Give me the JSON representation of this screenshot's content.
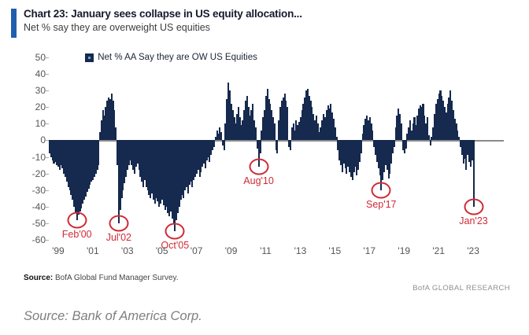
{
  "header": {
    "title": "Chart 23: January sees collapse in US equity allocation...",
    "subtitle": "Net % say they are overweight US equities",
    "accent_color": "#1f5fad"
  },
  "legend": {
    "label": "Net % AA Say they are OW US Equities"
  },
  "chart_data": {
    "type": "bar",
    "title": "Chart 23: January sees collapse in US equity allocation...",
    "subtitle": "Net % say they are overweight US equities",
    "series_name": "Net % AA Say they are OW US Equities",
    "frequency": "monthly",
    "start_month": "1998-07",
    "end_month": "2023-01",
    "ylim": [
      -60,
      50
    ],
    "yticks": [
      50,
      40,
      30,
      20,
      10,
      0,
      -10,
      -20,
      -30,
      -40,
      -50,
      -60
    ],
    "grid": false,
    "legend_position": "top-inside",
    "bar_color": "#16294e",
    "annotation_color": "#cf2a35",
    "xticks": [
      {
        "label": "'99",
        "index": 6
      },
      {
        "label": "'01",
        "index": 30
      },
      {
        "label": "'03",
        "index": 54
      },
      {
        "label": "'05",
        "index": 78
      },
      {
        "label": "'07",
        "index": 102
      },
      {
        "label": "'09",
        "index": 126
      },
      {
        "label": "'11",
        "index": 150
      },
      {
        "label": "'13",
        "index": 174
      },
      {
        "label": "'15",
        "index": 198
      },
      {
        "label": "'17",
        "index": 222
      },
      {
        "label": "'19",
        "index": 246
      },
      {
        "label": "'21",
        "index": 270
      },
      {
        "label": "'23",
        "index": 294
      }
    ],
    "annotations": [
      {
        "label": "Feb'00",
        "index": 19,
        "value": -48
      },
      {
        "label": "Jul'02",
        "index": 48,
        "value": -50
      },
      {
        "label": "Oct'05",
        "index": 87,
        "value": -55
      },
      {
        "label": "Aug'10",
        "index": 145,
        "value": -16
      },
      {
        "label": "Sep'17",
        "index": 230,
        "value": -30
      },
      {
        "label": "Jan'23",
        "index": 294,
        "value": -40
      }
    ],
    "values": [
      -8,
      -10,
      -12,
      -14,
      -13,
      -15,
      -16,
      -18,
      -15,
      -17,
      -20,
      -22,
      -25,
      -28,
      -30,
      -33,
      -36,
      -40,
      -44,
      -48,
      -45,
      -43,
      -41,
      -38,
      -36,
      -34,
      -31,
      -29,
      -27,
      -25,
      -24,
      -22,
      -20,
      -18,
      -15,
      5,
      12,
      18,
      15,
      20,
      24,
      26,
      25,
      28,
      24,
      18,
      8,
      -15,
      -50,
      -42,
      -35,
      -30,
      -26,
      -22,
      -18,
      -15,
      -12,
      -15,
      -18,
      -20,
      -16,
      -14,
      -18,
      -22,
      -25,
      -28,
      -24,
      -28,
      -30,
      -33,
      -35,
      -32,
      -36,
      -38,
      -35,
      -37,
      -40,
      -38,
      -36,
      -39,
      -42,
      -40,
      -44,
      -46,
      -43,
      -47,
      -50,
      -55,
      -48,
      -44,
      -40,
      -36,
      -33,
      -35,
      -30,
      -28,
      -32,
      -27,
      -25,
      -28,
      -24,
      -22,
      -20,
      -18,
      -22,
      -19,
      -16,
      -14,
      -17,
      -12,
      -10,
      -13,
      -9,
      -6,
      -4,
      2,
      6,
      4,
      8,
      5,
      -3,
      -6,
      10,
      25,
      35,
      30,
      22,
      18,
      14,
      10,
      16,
      20,
      14,
      9,
      12,
      18,
      24,
      27,
      20,
      15,
      18,
      22,
      12,
      8,
      -5,
      -16,
      -8,
      6,
      14,
      18,
      27,
      31,
      25,
      22,
      18,
      14,
      10,
      -6,
      -8,
      12,
      20,
      24,
      26,
      28,
      24,
      20,
      -4,
      -6,
      8,
      10,
      6,
      12,
      9,
      11,
      14,
      18,
      22,
      26,
      30,
      31,
      27,
      24,
      20,
      16,
      12,
      15,
      10,
      5,
      8,
      12,
      16,
      14,
      18,
      21,
      19,
      22,
      17,
      13,
      8,
      2,
      -6,
      -12,
      -15,
      -19,
      -14,
      -17,
      -20,
      -16,
      -19,
      -22,
      -24,
      -19,
      -16,
      -21,
      -18,
      -13,
      -8,
      4,
      9,
      13,
      15,
      12,
      14,
      10,
      6,
      -4,
      -9,
      -13,
      -17,
      -21,
      -30,
      -24,
      -19,
      -15,
      -18,
      -23,
      -20,
      -14,
      -8,
      -4,
      8,
      15,
      19,
      16,
      10,
      -6,
      -8,
      -5,
      4,
      8,
      12,
      6,
      10,
      14,
      9,
      15,
      19,
      21,
      20,
      22,
      15,
      10,
      14,
      3,
      -3,
      2,
      8,
      16,
      22,
      25,
      28,
      30,
      27,
      24,
      20,
      17,
      22,
      26,
      30,
      24,
      18,
      13,
      10,
      6,
      2,
      -4,
      -9,
      -14,
      -11,
      -18,
      -9,
      -13,
      -16,
      -12,
      -40
    ]
  },
  "footer": {
    "source_label": "Source:",
    "source_text": " BofA Global Fund Manager Survey.",
    "brand": "BofA GLOBAL RESEARCH"
  },
  "caption": "Source: Bank of America Corp."
}
